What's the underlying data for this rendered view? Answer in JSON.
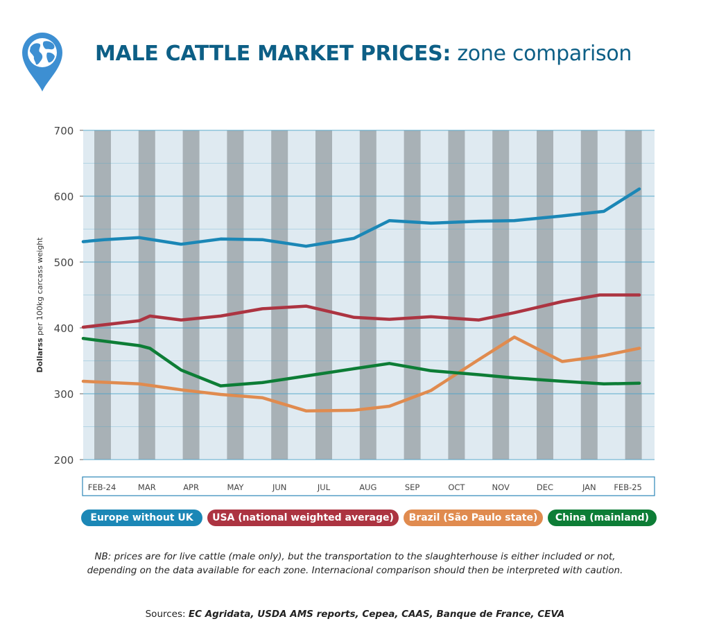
{
  "header": {
    "title_bold": "MALE CATTLE MARKET PRICES:",
    "title_rest": " zone comparison",
    "logo_icon": "globe-pin-icon"
  },
  "colors": {
    "title": "#0d5f86",
    "europe": "#1b87b6",
    "usa": "#ac3441",
    "brazil": "#e08b4f",
    "china": "#0d7d36",
    "stripe_dark": "#a8b1b6",
    "stripe_light": "#dfeaf1",
    "gridline": "#4aa3c8"
  },
  "chart_data": {
    "type": "line",
    "title": "MALE CATTLE MARKET PRICES: zone comparison",
    "xlabel": "",
    "ylabel": "Dollarss per 100kg carcass weight",
    "ylabel_parts": [
      "Dollarss",
      " per 100kg carcass weight"
    ],
    "ylim": [
      200,
      700
    ],
    "yticks": [
      200,
      300,
      400,
      500,
      600,
      700
    ],
    "categories": [
      "FEB-24",
      "MAR",
      "APR",
      "MAY",
      "JUN",
      "JUL",
      "AUG",
      "SEP",
      "OCT",
      "NOV",
      "DEC",
      "JAN",
      "FEB-25"
    ],
    "series": [
      {
        "name": "Europe without UK",
        "color": "#1b87b6",
        "x": [
          0,
          0.5,
          1.35,
          2.35,
          3.3,
          4.3,
          5.35,
          6.5,
          7.35,
          8.35,
          9.5,
          10.35,
          11.5,
          12.5,
          13.35
        ],
        "values": [
          531,
          534,
          537,
          527,
          535,
          534,
          524,
          536,
          563,
          559,
          562,
          563,
          570,
          577,
          611
        ]
      },
      {
        "name": "USA (national weighted average)",
        "color": "#ac3441",
        "x": [
          0,
          1.35,
          1.6,
          2.35,
          3.3,
          4.3,
          5.35,
          6.5,
          7.35,
          8.35,
          9.5,
          10.35,
          11.5,
          12.4,
          13.35
        ],
        "values": [
          401,
          411,
          418,
          412,
          418,
          429,
          433,
          416,
          413,
          417,
          412,
          423,
          440,
          450,
          450
        ]
      },
      {
        "name": "Brazil (São Paulo state)",
        "color": "#e08b4f",
        "x": [
          0,
          1.35,
          2.35,
          3.3,
          4.3,
          5.35,
          6.5,
          7.35,
          8.35,
          9.5,
          10.35,
          11.5,
          12.2,
          12.5,
          13.35
        ],
        "values": [
          319,
          315,
          306,
          299,
          294,
          274,
          275,
          281,
          305,
          352,
          386,
          349,
          355,
          358,
          369
        ]
      },
      {
        "name": "China (mainland)",
        "color": "#0d7d36",
        "x": [
          0,
          1.35,
          1.6,
          2.35,
          3.3,
          4.3,
          5.35,
          6.5,
          7.35,
          8.35,
          9.5,
          10.35,
          11.5,
          12.5,
          13.35
        ],
        "values": [
          384,
          373,
          369,
          336,
          312,
          317,
          327,
          338,
          346,
          335,
          329,
          324,
          319,
          315,
          316
        ]
      }
    ],
    "legend": [
      "Europe without UK",
      "USA (national weighted average)",
      "Brazil (São Paulo state)",
      "China (mainland)"
    ],
    "legend_position": "bottom",
    "grid": true
  },
  "footer": {
    "note_line1": "NB: prices are for live cattle (male only), but the transportation to the slaughterhouse is either included or not,",
    "note_line2": "depending on the data available for each zone. Internacional comparison should then be interpreted with caution.",
    "sources_label": "Sources: ",
    "sources_list": "EC Agridata, USDA AMS reports, Cepea, CAAS, Banque de France, CEVA"
  }
}
